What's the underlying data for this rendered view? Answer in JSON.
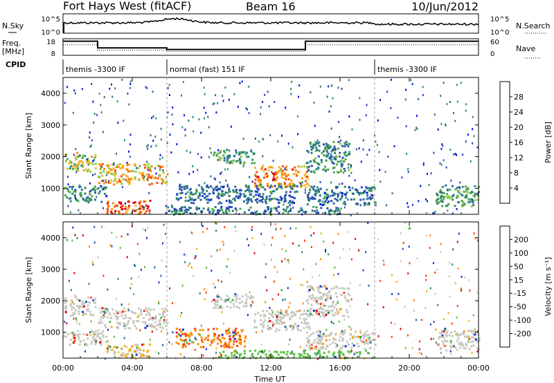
{
  "header": {
    "title": "Fort Hays West (fitACF)",
    "beam": "Beam 16",
    "date": "10/Jun/2012"
  },
  "summary": {
    "nsky_label": "N.Sky",
    "nsearch_label": "N.Search",
    "noise_ticks": [
      "10^5",
      "10^0"
    ],
    "freq_label": "Freq.",
    "freq_unit": "[MHz]",
    "freq_ticks": [
      "18",
      "8"
    ],
    "nave_label": "Nave",
    "nave_ticks": [
      "60",
      "0"
    ],
    "cpid_label": "CPID",
    "cpid_segments": [
      {
        "label": "themis -3300 IF",
        "start_h": 0,
        "end_h": 6
      },
      {
        "label": "normal (fast) 151 IF",
        "start_h": 6,
        "end_h": 18
      },
      {
        "label": "themis -3300 IF",
        "start_h": 18,
        "end_h": 24
      }
    ],
    "freq_profile": [
      [
        0,
        16.5
      ],
      [
        2,
        16.5
      ],
      [
        2,
        12.5
      ],
      [
        6,
        12.5
      ],
      [
        6,
        11.5
      ],
      [
        14,
        11.5
      ],
      [
        14,
        16.5
      ],
      [
        24,
        16.5
      ]
    ],
    "nave_profile": [
      [
        0,
        38
      ],
      [
        2,
        38
      ],
      [
        2,
        18
      ],
      [
        6,
        18
      ],
      [
        6,
        14
      ],
      [
        14,
        14
      ],
      [
        14,
        38
      ],
      [
        24,
        38
      ]
    ]
  },
  "chart_data": [
    {
      "type": "heatmap",
      "name": "power",
      "ylabel": "Slant Range [km]",
      "xlabel": "",
      "xlim": [
        0,
        24
      ],
      "ylim": [
        180,
        4500
      ],
      "yticks": [
        "1000",
        "2000",
        "3000",
        "4000"
      ],
      "xticks": [
        "00:00",
        "04:00",
        "08:00",
        "12:00",
        "16:00",
        "20:00",
        "00:00"
      ],
      "colorbar": {
        "label": "Power [dB]",
        "ticks": [
          "4",
          "8",
          "12",
          "16",
          "20",
          "24",
          "28"
        ],
        "colors": [
          "#0015e0",
          "#2a44c9",
          "#2d6b9a",
          "#2c8e66",
          "#4aa84a",
          "#8fc63a",
          "#f2b628",
          "#ff8a00",
          "#ff4d00",
          "#e00000"
        ]
      },
      "regions": [
        {
          "t0": 0.0,
          "t1": 1.9,
          "r0": 1550,
          "r1": 2150,
          "level": 0.55
        },
        {
          "t0": 2.0,
          "t1": 6.0,
          "r0": 1150,
          "r1": 1800,
          "level": 0.7
        },
        {
          "t0": 0.0,
          "t1": 2.5,
          "r0": 600,
          "r1": 1100,
          "level": 0.35
        },
        {
          "t0": 2.5,
          "t1": 5.0,
          "r0": 200,
          "r1": 650,
          "level": 0.85
        },
        {
          "t0": 8.5,
          "t1": 11.0,
          "r0": 1800,
          "r1": 2250,
          "level": 0.4
        },
        {
          "t0": 11.0,
          "t1": 14.2,
          "r0": 1050,
          "r1": 1750,
          "level": 0.75
        },
        {
          "t0": 6.5,
          "t1": 13.5,
          "r0": 550,
          "r1": 1150,
          "level": 0.25
        },
        {
          "t0": 14.0,
          "t1": 16.5,
          "r0": 1500,
          "r1": 2500,
          "level": 0.35
        },
        {
          "t0": 14.0,
          "t1": 18.0,
          "r0": 500,
          "r1": 1100,
          "level": 0.25
        },
        {
          "t0": 21.5,
          "t1": 24.0,
          "r0": 450,
          "r1": 1150,
          "level": 0.4
        },
        {
          "t0": 6.0,
          "t1": 16.0,
          "r0": 200,
          "r1": 450,
          "level": 0.3
        }
      ]
    },
    {
      "type": "heatmap",
      "name": "velocity",
      "ylabel": "Slant Range [km]",
      "xlabel": "Time UT",
      "xlim": [
        0,
        24
      ],
      "ylim": [
        180,
        4500
      ],
      "yticks": [
        "1000",
        "2000",
        "3000",
        "4000"
      ],
      "xticks": [
        "00:00",
        "04:00",
        "08:00",
        "12:00",
        "16:00",
        "20:00",
        "00:00"
      ],
      "colorbar": {
        "label": "Velocity [m s⁻¹]",
        "ticks": [
          "200",
          "100",
          "50",
          "15",
          "-15",
          "-50",
          "-100",
          "-200"
        ],
        "colors": [
          "#1530c8",
          "#2060a8",
          "#2a8f55",
          "#55c040",
          "#c8c8c0",
          "#c8c8c0",
          "#f0b020",
          "#ff8c00",
          "#ff4000",
          "#e00000"
        ]
      },
      "regions": [
        {
          "t0": 0.0,
          "t1": 1.9,
          "r0": 1550,
          "r1": 2150,
          "level": 0.5
        },
        {
          "t0": 2.0,
          "t1": 6.0,
          "r0": 1150,
          "r1": 1800,
          "level": 0.5
        },
        {
          "t0": 0.0,
          "t1": 2.5,
          "r0": 600,
          "r1": 1100,
          "level": 0.5
        },
        {
          "t0": 2.5,
          "t1": 5.0,
          "r0": 200,
          "r1": 650,
          "level": 0.62
        },
        {
          "t0": 8.5,
          "t1": 11.0,
          "r0": 1800,
          "r1": 2250,
          "level": 0.5
        },
        {
          "t0": 11.0,
          "t1": 14.2,
          "r0": 1050,
          "r1": 1750,
          "level": 0.5
        },
        {
          "t0": 6.5,
          "t1": 10.5,
          "r0": 550,
          "r1": 1150,
          "level": 0.78
        },
        {
          "t0": 14.0,
          "t1": 16.5,
          "r0": 1500,
          "r1": 2500,
          "level": 0.5
        },
        {
          "t0": 14.0,
          "t1": 18.0,
          "r0": 500,
          "r1": 1100,
          "level": 0.5
        },
        {
          "t0": 21.5,
          "t1": 24.0,
          "r0": 450,
          "r1": 1150,
          "level": 0.5
        },
        {
          "t0": 9.0,
          "t1": 18.0,
          "r0": 200,
          "r1": 450,
          "level": 0.35
        }
      ]
    }
  ]
}
